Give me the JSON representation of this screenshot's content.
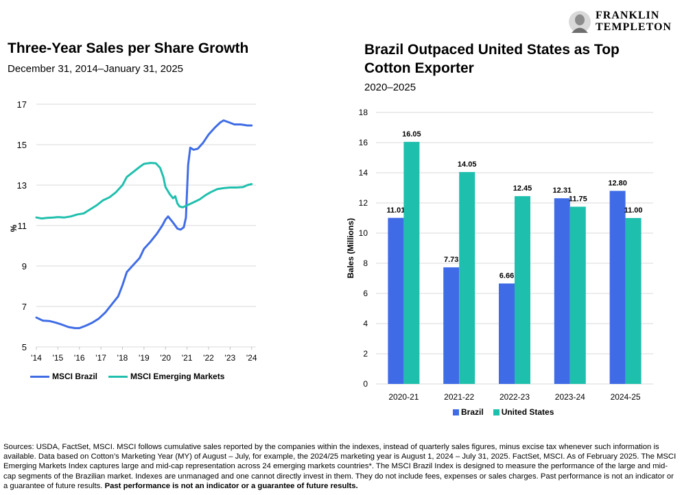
{
  "brand": {
    "line1": "FRANKLIN",
    "line2": "TEMPLETON"
  },
  "chart_data": [
    {
      "type": "line",
      "title": "Three-Year Sales per Share Growth",
      "subtitle": "December 31, 2014–January 31, 2025",
      "xlabel": "",
      "ylabel": "%",
      "xlim": [
        2014,
        2024.2
      ],
      "ylim": [
        5,
        17
      ],
      "yticks": [
        5,
        7,
        9,
        11,
        13,
        15,
        17
      ],
      "xtick_labels": [
        "'14",
        "'15",
        "'16",
        "'17",
        "'18",
        "'19",
        "'20",
        "'21",
        "'22",
        "'23",
        "'24"
      ],
      "grid": "horizontal",
      "legend_position": "bottom",
      "series": [
        {
          "name": "MSCI Brazil",
          "color": "#3f6ce6",
          "points": [
            [
              2014.0,
              6.45
            ],
            [
              2014.3,
              6.3
            ],
            [
              2014.6,
              6.28
            ],
            [
              2014.9,
              6.2
            ],
            [
              2015.2,
              6.1
            ],
            [
              2015.5,
              5.98
            ],
            [
              2015.8,
              5.93
            ],
            [
              2016.0,
              5.93
            ],
            [
              2016.3,
              6.05
            ],
            [
              2016.6,
              6.2
            ],
            [
              2016.9,
              6.4
            ],
            [
              2017.2,
              6.7
            ],
            [
              2017.5,
              7.1
            ],
            [
              2017.8,
              7.5
            ],
            [
              2018.0,
              8.05
            ],
            [
              2018.2,
              8.7
            ],
            [
              2018.5,
              9.05
            ],
            [
              2018.8,
              9.4
            ],
            [
              2019.0,
              9.85
            ],
            [
              2019.3,
              10.2
            ],
            [
              2019.6,
              10.6
            ],
            [
              2019.85,
              11.0
            ],
            [
              2020.0,
              11.3
            ],
            [
              2020.12,
              11.45
            ],
            [
              2020.35,
              11.15
            ],
            [
              2020.55,
              10.85
            ],
            [
              2020.7,
              10.8
            ],
            [
              2020.85,
              10.92
            ],
            [
              2020.95,
              11.4
            ],
            [
              2021.05,
              14.0
            ],
            [
              2021.15,
              14.85
            ],
            [
              2021.3,
              14.75
            ],
            [
              2021.5,
              14.8
            ],
            [
              2021.75,
              15.1
            ],
            [
              2022.0,
              15.5
            ],
            [
              2022.3,
              15.85
            ],
            [
              2022.55,
              16.1
            ],
            [
              2022.7,
              16.2
            ],
            [
              2022.95,
              16.1
            ],
            [
              2023.2,
              16.0
            ],
            [
              2023.5,
              16.0
            ],
            [
              2023.8,
              15.95
            ],
            [
              2024.0,
              15.95
            ]
          ]
        },
        {
          "name": "MSCI Emerging Markets",
          "color": "#1fbfad",
          "points": [
            [
              2014.0,
              11.4
            ],
            [
              2014.25,
              11.35
            ],
            [
              2014.5,
              11.38
            ],
            [
              2014.8,
              11.4
            ],
            [
              2015.0,
              11.42
            ],
            [
              2015.3,
              11.4
            ],
            [
              2015.6,
              11.45
            ],
            [
              2015.9,
              11.55
            ],
            [
              2016.2,
              11.6
            ],
            [
              2016.5,
              11.8
            ],
            [
              2016.8,
              12.0
            ],
            [
              2017.1,
              12.25
            ],
            [
              2017.4,
              12.4
            ],
            [
              2017.7,
              12.65
            ],
            [
              2018.0,
              13.0
            ],
            [
              2018.2,
              13.4
            ],
            [
              2018.5,
              13.65
            ],
            [
              2018.8,
              13.9
            ],
            [
              2019.0,
              14.05
            ],
            [
              2019.3,
              14.1
            ],
            [
              2019.55,
              14.08
            ],
            [
              2019.75,
              13.85
            ],
            [
              2019.9,
              13.4
            ],
            [
              2020.0,
              12.9
            ],
            [
              2020.2,
              12.55
            ],
            [
              2020.35,
              12.35
            ],
            [
              2020.45,
              12.45
            ],
            [
              2020.55,
              12.1
            ],
            [
              2020.65,
              11.95
            ],
            [
              2020.8,
              11.9
            ],
            [
              2021.0,
              12.0
            ],
            [
              2021.2,
              12.1
            ],
            [
              2021.4,
              12.2
            ],
            [
              2021.6,
              12.3
            ],
            [
              2021.85,
              12.5
            ],
            [
              2022.1,
              12.65
            ],
            [
              2022.4,
              12.8
            ],
            [
              2022.7,
              12.85
            ],
            [
              2023.0,
              12.88
            ],
            [
              2023.3,
              12.88
            ],
            [
              2023.6,
              12.9
            ],
            [
              2023.8,
              13.0
            ],
            [
              2024.0,
              13.05
            ]
          ]
        }
      ]
    },
    {
      "type": "bar",
      "title": "Brazil Outpaced United States as Top Cotton Exporter",
      "subtitle": "2020–2025",
      "xlabel": "",
      "ylabel": "Bales (Millions)",
      "ylim": [
        0,
        18
      ],
      "yticks": [
        0,
        2,
        4,
        6,
        8,
        10,
        12,
        14,
        16,
        18
      ],
      "grid": "horizontal",
      "legend_position": "bottom",
      "categories": [
        "2020-21",
        "2021-22",
        "2022-23",
        "2023-24",
        "2024-25"
      ],
      "series": [
        {
          "name": "Brazil",
          "color": "#3f6ce6",
          "values": [
            11.01,
            7.73,
            6.66,
            12.31,
            12.8
          ],
          "labels": [
            "11.01",
            "7.73",
            "6.66",
            "12.31",
            "12.80"
          ]
        },
        {
          "name": "United States",
          "color": "#1fbfad",
          "values": [
            16.05,
            14.05,
            12.45,
            11.75,
            11.0
          ],
          "labels": [
            "16.05",
            "14.05",
            "12.45",
            "11.75",
            "11.00"
          ]
        }
      ]
    }
  ],
  "footer": {
    "text": "Sources: USDA, FactSet, MSCI. MSCI follows cumulative sales reported by the companies within the indexes, instead of quarterly sales figures, minus excise tax whenever such information is available. Data based on Cotton’s Marketing Year (MY) of  August – July, for example, the 2024/25 marketing year is August 1, 2024 – July 31, 2025. FactSet, MSCI. As of February 2025. The MSCI Emerging Markets Index captures large and mid-cap representation across 24 emerging markets countries*. The MSCI Brazil Index is designed to measure the performance of the large and mid-cap segments of the Brazilian market. Indexes are unmanaged and one cannot directly invest in them. They do not include fees, expenses or sales charges. Past performance is not an indicator or a guarantee of future results. ",
    "bold_text": "Past performance is not an indicator or a guarantee of future results."
  }
}
